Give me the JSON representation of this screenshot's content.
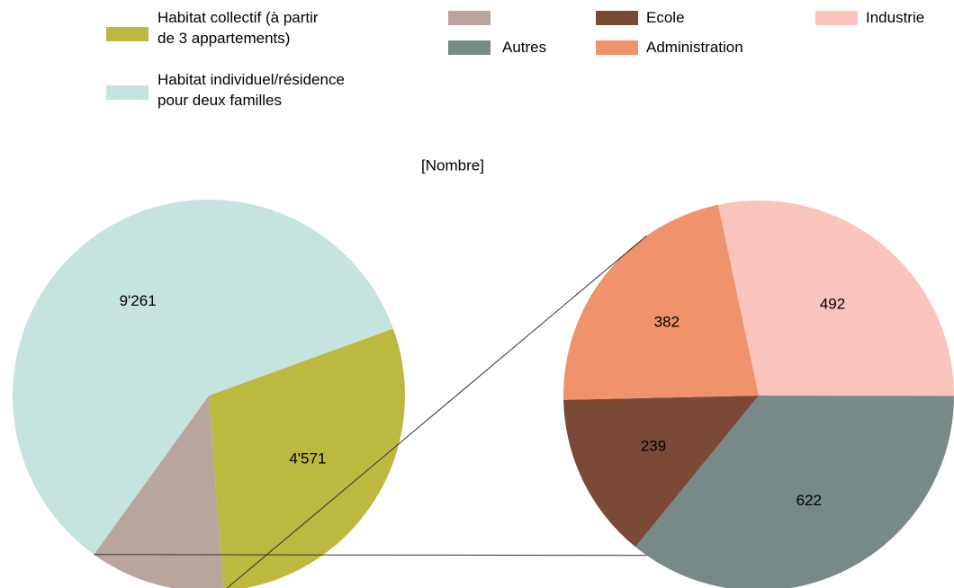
{
  "chart_data": {
    "type": "pie-of-pie",
    "title": "[Nombre]",
    "series": [
      {
        "name": "Habitat collectif (à partir\nde 3 appartements)",
        "color": "#bcb840",
        "values": [
          4571
        ],
        "value_labels": [
          "4'571"
        ]
      },
      {
        "color": "#b9a59d",
        "values": [
          1735
        ]
      },
      {
        "name": "Habitat individuel/résidence\npour deux familles",
        "color": "#c5e3df",
        "values": [
          9261
        ],
        "value_labels": [
          "9'261"
        ]
      }
    ],
    "secondary": [
      {
        "name": "Industrie",
        "color": "#f8c4bb",
        "values": [
          492
        ]
      },
      {
        "name": "Autres",
        "color": "#778a88",
        "values": [
          622
        ]
      },
      {
        "name": "Ecole",
        "color": "#7a4a37",
        "values": [
          239
        ]
      },
      {
        "name": "Administration",
        "color": "#f0926b",
        "values": [
          382
        ]
      }
    ]
  }
}
